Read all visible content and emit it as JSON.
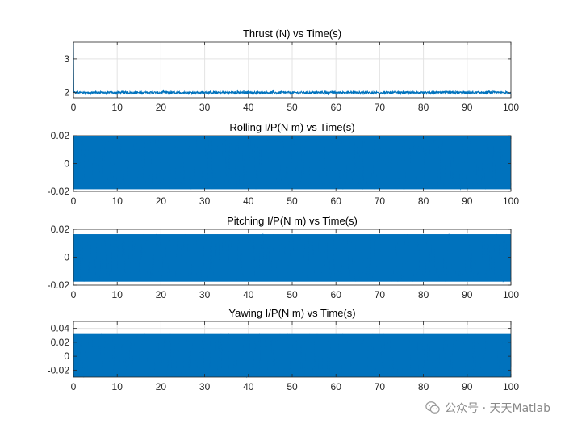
{
  "colors": {
    "series": "#0072bd",
    "axis": "#262626",
    "grid": "#e3e3e3",
    "background": "#ffffff"
  },
  "watermark": {
    "text": "公众号 · 天天Matlab",
    "icon": "wechat-icon"
  },
  "chart_data": [
    {
      "type": "line",
      "title": "Thrust (N) vs Time(s)",
      "xlabel": "",
      "ylabel": "",
      "xlim": [
        0,
        100
      ],
      "ylim": [
        1.85,
        3.5
      ],
      "xticks": [
        0,
        10,
        20,
        30,
        40,
        50,
        60,
        70,
        80,
        90,
        100
      ],
      "yticks": [
        2,
        3
      ],
      "ytick_labels": [
        "2",
        "3"
      ],
      "grid": true,
      "series": [
        {
          "name": "Thrust",
          "initial": 3.5,
          "baseline": 2.0,
          "noise_range": [
            1.96,
            2.06
          ]
        }
      ]
    },
    {
      "type": "line",
      "title": "Rolling I/P(N m) vs Time(s)",
      "xlabel": "",
      "ylabel": "",
      "xlim": [
        0,
        100
      ],
      "ylim": [
        -0.02,
        0.02
      ],
      "xticks": [
        0,
        10,
        20,
        30,
        40,
        50,
        60,
        70,
        80,
        90,
        100
      ],
      "yticks": [
        -0.02,
        0,
        0.02
      ],
      "ytick_labels": [
        "-0.02",
        "0",
        "0.02"
      ],
      "grid": true,
      "series": [
        {
          "name": "Rolling",
          "noise_range": [
            -0.0185,
            0.0195
          ]
        }
      ]
    },
    {
      "type": "line",
      "title": "Pitching I/P(N m) vs Time(s)",
      "xlabel": "",
      "ylabel": "",
      "xlim": [
        0,
        100
      ],
      "ylim": [
        -0.02,
        0.02
      ],
      "xticks": [
        0,
        10,
        20,
        30,
        40,
        50,
        60,
        70,
        80,
        90,
        100
      ],
      "yticks": [
        -0.02,
        0,
        0.02
      ],
      "ytick_labels": [
        "-0.02",
        "0",
        "0.02"
      ],
      "grid": true,
      "series": [
        {
          "name": "Pitching",
          "noise_range": [
            -0.0175,
            0.0165
          ]
        }
      ]
    },
    {
      "type": "line",
      "title": "Yawing I/P(N m) vs Time(s)",
      "xlabel": "",
      "ylabel": "",
      "xlim": [
        0,
        100
      ],
      "ylim": [
        -0.03,
        0.05
      ],
      "xticks": [
        0,
        10,
        20,
        30,
        40,
        50,
        60,
        70,
        80,
        90,
        100
      ],
      "yticks": [
        -0.02,
        0,
        0.02,
        0.04
      ],
      "ytick_labels": [
        "-0.02",
        "0",
        "0.02",
        "0.04"
      ],
      "grid": true,
      "series": [
        {
          "name": "Yawing",
          "noise_range": [
            -0.03,
            0.033
          ]
        }
      ]
    }
  ]
}
